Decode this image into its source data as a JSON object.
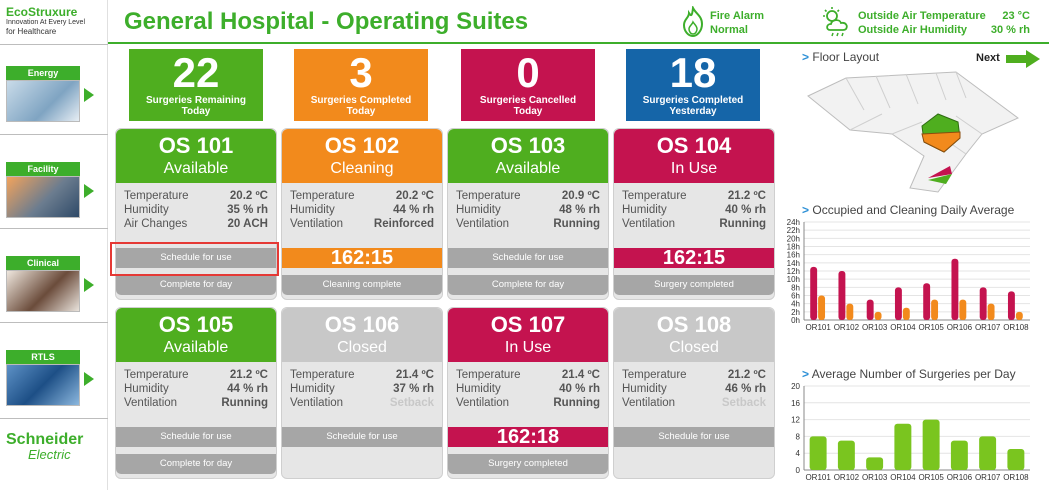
{
  "sidebar": {
    "logo": {
      "brand": "EcoStruxure",
      "tagline": "Innovation At Every Level",
      "sub": "for Healthcare"
    },
    "items": [
      {
        "label": "Energy"
      },
      {
        "label": "Facility"
      },
      {
        "label": "Clinical"
      },
      {
        "label": "RTLS"
      }
    ],
    "footer": {
      "brand_1": "Schneider",
      "brand_2": "Electric"
    }
  },
  "header": {
    "title": "General Hospital - Operating Suites",
    "fire_alarm_label": "Fire Alarm",
    "fire_alarm_status": "Normal",
    "outside_temp_label": "Outside Air Temperature",
    "outside_temp_value": "23 °C",
    "outside_humidity_label": "Outside Air Humidity",
    "outside_humidity_value": "30 % rh"
  },
  "summary": [
    {
      "value": "22",
      "label_1": "Surgeries Remaining",
      "label_2": "Today",
      "color": "#4fae1f"
    },
    {
      "value": "3",
      "label_1": "Surgeries Completed",
      "label_2": "Today",
      "color": "#f28a1c"
    },
    {
      "value": "0",
      "label_1": "Surgeries Cancelled",
      "label_2": "Today",
      "color": "#c4134f"
    },
    {
      "value": "18",
      "label_1": "Surgeries Completed",
      "label_2": "Yesterday",
      "color": "#1565a8"
    }
  ],
  "rooms": [
    {
      "name": "OS 101",
      "status": "Available",
      "color": "#4fae1f",
      "rows": [
        [
          "Temperature",
          "20.2 ºC"
        ],
        [
          "Humidity",
          "35 % rh"
        ],
        [
          "Air Changes",
          "20 ACH"
        ]
      ],
      "btn1": "Schedule for use",
      "btn2": "Complete for day"
    },
    {
      "name": "OS 102",
      "status": "Cleaning",
      "color": "#f28a1c",
      "rows": [
        [
          "Temperature",
          "20.2 ºC"
        ],
        [
          "Humidity",
          "44 % rh"
        ],
        [
          "Ventilation",
          "Reinforced"
        ]
      ],
      "timer": "162:15",
      "timer_color": "#f28a1c",
      "btn2": "Cleaning complete"
    },
    {
      "name": "OS 103",
      "status": "Available",
      "color": "#4fae1f",
      "rows": [
        [
          "Temperature",
          "20.9 ºC"
        ],
        [
          "Humidity",
          "48 % rh"
        ],
        [
          "Ventilation",
          "Running"
        ]
      ],
      "btn1": "Schedule for use",
      "btn2": "Complete for day"
    },
    {
      "name": "OS 104",
      "status": "In Use",
      "color": "#c4134f",
      "rows": [
        [
          "Temperature",
          "21.2 ºC"
        ],
        [
          "Humidity",
          "40 % rh"
        ],
        [
          "Ventilation",
          "Running"
        ]
      ],
      "timer": "162:15",
      "timer_color": "#c4134f",
      "btn2": "Surgery completed"
    },
    {
      "name": "OS 105",
      "status": "Available",
      "color": "#4fae1f",
      "rows": [
        [
          "Temperature",
          "21.2 ºC"
        ],
        [
          "Humidity",
          "44 % rh"
        ],
        [
          "Ventilation",
          "Running"
        ]
      ],
      "btn1": "Schedule for use",
      "btn2": "Complete for day"
    },
    {
      "name": "OS 106",
      "status": "Closed",
      "color": "#c8c8c8",
      "rows": [
        [
          "Temperature",
          "21.4 ºC"
        ],
        [
          "Humidity",
          "37 % rh"
        ],
        [
          "Ventilation",
          "Setback"
        ]
      ],
      "btn1": "Schedule for use"
    },
    {
      "name": "OS 107",
      "status": "In Use",
      "color": "#c4134f",
      "rows": [
        [
          "Temperature",
          "21.4 ºC"
        ],
        [
          "Humidity",
          "40 % rh"
        ],
        [
          "Ventilation",
          "Running"
        ]
      ],
      "timer": "162:18",
      "timer_color": "#c4134f",
      "btn2": "Surgery completed"
    },
    {
      "name": "OS 108",
      "status": "Closed",
      "color": "#c8c8c8",
      "rows": [
        [
          "Temperature",
          "21.2 ºC"
        ],
        [
          "Humidity",
          "46 % rh"
        ],
        [
          "Ventilation",
          "Setback"
        ]
      ],
      "btn1": "Schedule for use"
    }
  ],
  "floor_layout": {
    "title": "Floor Layout",
    "next_label": "Next"
  },
  "chart_data": [
    {
      "type": "bar",
      "title": "Occupied and Cleaning Daily Average",
      "categories": [
        "OR101",
        "OR102",
        "OR103",
        "OR104",
        "OR105",
        "OR106",
        "OR107",
        "OR108"
      ],
      "ylim": [
        0,
        24
      ],
      "yticks": [
        "0h",
        "2h",
        "4h",
        "6h",
        "8h",
        "10h",
        "12h",
        "14h",
        "16h",
        "18h",
        "20h",
        "22h",
        "24h"
      ],
      "series": [
        {
          "values": [
            13,
            12,
            5,
            8,
            9,
            15,
            8,
            7
          ],
          "color": "#c4134f"
        },
        {
          "values": [
            6,
            4,
            2,
            3,
            5,
            5,
            4,
            2
          ],
          "color": "#f28a1c"
        }
      ]
    },
    {
      "type": "bar",
      "title": "Average Number of Surgeries per Day",
      "categories": [
        "OR101",
        "OR102",
        "OR103",
        "OR104",
        "OR105",
        "OR106",
        "OR107",
        "OR108"
      ],
      "ylim": [
        0,
        20
      ],
      "yticks": [
        "0",
        "4",
        "8",
        "12",
        "16",
        "20"
      ],
      "series": [
        {
          "values": [
            8,
            7,
            3,
            11,
            12,
            7,
            8,
            5
          ],
          "color": "#7ac51f"
        }
      ]
    }
  ]
}
